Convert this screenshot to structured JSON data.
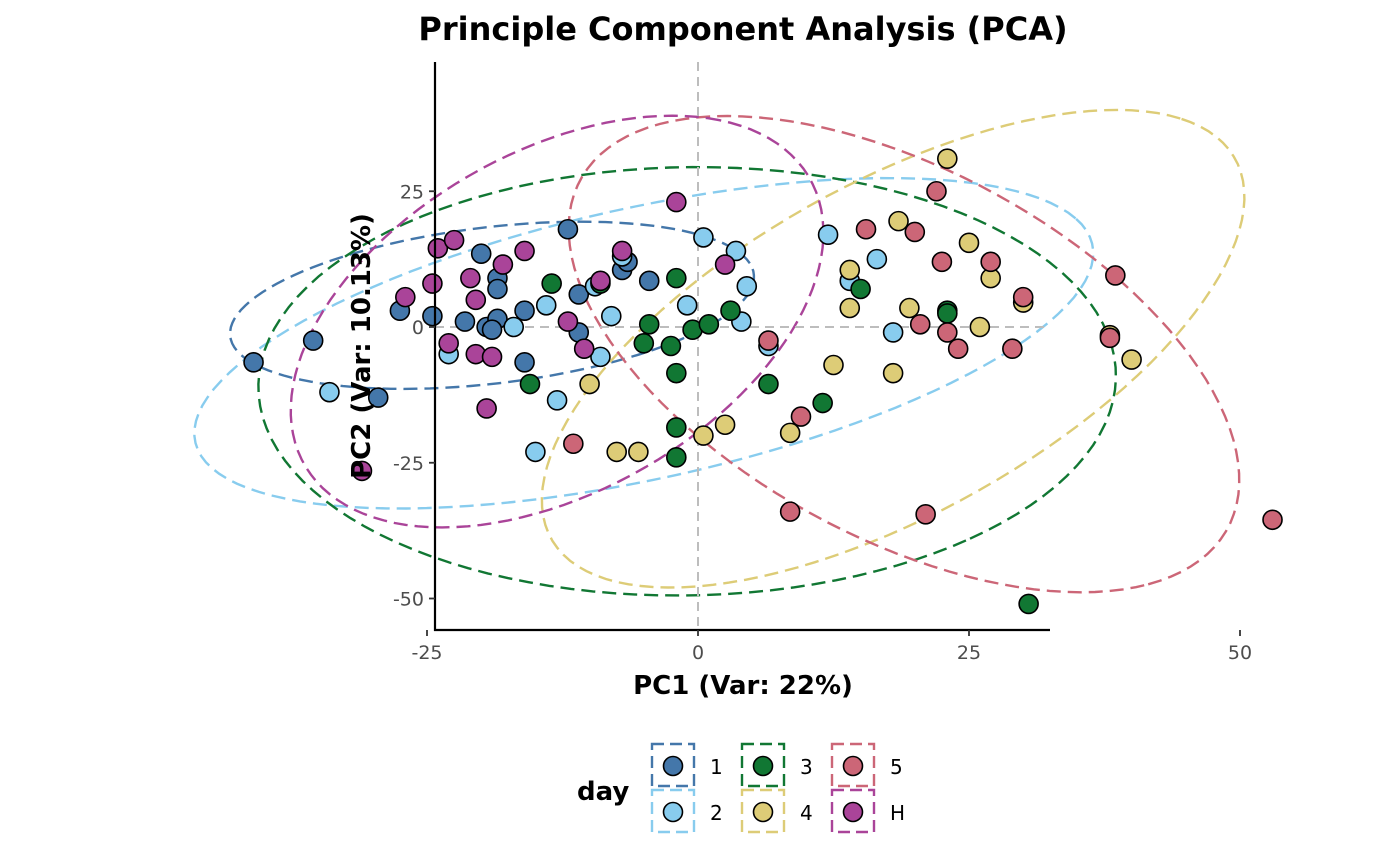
{
  "chart_data": {
    "type": "scatter",
    "title": "Principle Component Analysis (PCA)",
    "xlabel": "PC1 (Var: 22%)",
    "ylabel": "PC2 (Var: 10.13%)",
    "xlim": [
      -48,
      65
    ],
    "ylim": [
      -56,
      49
    ],
    "xticks": [
      -25,
      0,
      25,
      50
    ],
    "xtick_labels": [
      "-25",
      "0",
      "25",
      "50"
    ],
    "yticks": [
      -50,
      -25,
      0,
      25
    ],
    "ytick_labels": [
      "-50",
      "-25",
      "0",
      "25"
    ],
    "grid": false,
    "reference_lines": {
      "x": 0,
      "y": 0
    },
    "legend": {
      "title": "day",
      "position": "bottom"
    },
    "ellipses": "dashed confidence ellipse per group",
    "series": [
      {
        "name": "1",
        "color": "#4477AA",
        "points": [
          [
            -41,
            -6.5
          ],
          [
            -35.5,
            -2.5
          ],
          [
            -29.5,
            -13
          ],
          [
            -27.5,
            3
          ],
          [
            -24.5,
            2
          ],
          [
            -21.5,
            1
          ],
          [
            -19.5,
            0
          ],
          [
            -18.5,
            1.5
          ],
          [
            -19,
            -0.5
          ],
          [
            -20,
            13.5
          ],
          [
            -18.5,
            9
          ],
          [
            -18.5,
            7
          ],
          [
            -16,
            3
          ],
          [
            -16,
            -6.5
          ],
          [
            -12,
            18
          ],
          [
            -11,
            6
          ],
          [
            -11,
            -1
          ],
          [
            -7,
            10.5
          ],
          [
            -6.5,
            12
          ],
          [
            -4.5,
            8.5
          ]
        ]
      },
      {
        "name": "2",
        "color": "#88CCEE",
        "points": [
          [
            -34,
            -12
          ],
          [
            -23,
            -5
          ],
          [
            -17,
            0
          ],
          [
            -15,
            -23
          ],
          [
            -14,
            4
          ],
          [
            -13,
            -13.5
          ],
          [
            -9.5,
            7.5
          ],
          [
            -9,
            -5.5
          ],
          [
            -8,
            2
          ],
          [
            -7,
            13
          ],
          [
            -1,
            4
          ],
          [
            0.5,
            16.5
          ],
          [
            3.5,
            14
          ],
          [
            4,
            1
          ],
          [
            4.5,
            7.5
          ],
          [
            6.5,
            -3.5
          ],
          [
            12,
            17
          ],
          [
            14,
            8.5
          ],
          [
            16.5,
            12.5
          ],
          [
            18,
            -1
          ]
        ]
      },
      {
        "name": "3",
        "color": "#117733",
        "points": [
          [
            -15.5,
            -10.5
          ],
          [
            -13.5,
            8
          ],
          [
            -9,
            8
          ],
          [
            -4.5,
            0.5
          ],
          [
            -5,
            -3
          ],
          [
            -2.5,
            -3.5
          ],
          [
            -2,
            9
          ],
          [
            -2,
            -8.5
          ],
          [
            -2,
            -18.5
          ],
          [
            -2,
            -24
          ],
          [
            -0.5,
            -0.5
          ],
          [
            1,
            0.5
          ],
          [
            3,
            3
          ],
          [
            6.5,
            -10.5
          ],
          [
            11.5,
            -14
          ],
          [
            15,
            7
          ],
          [
            23,
            3
          ],
          [
            23,
            2.5
          ],
          [
            30.5,
            -51
          ]
        ]
      },
      {
        "name": "4",
        "color": "#DDCC77",
        "points": [
          [
            -10,
            -10.5
          ],
          [
            -7.5,
            -23
          ],
          [
            -5.5,
            -23
          ],
          [
            0.5,
            -20
          ],
          [
            2.5,
            -18
          ],
          [
            8.5,
            -19.5
          ],
          [
            12.5,
            -7
          ],
          [
            14,
            10.5
          ],
          [
            14,
            3.5
          ],
          [
            18,
            -8.5
          ],
          [
            18.5,
            19.5
          ],
          [
            19.5,
            3.5
          ],
          [
            23,
            31
          ],
          [
            25,
            15.5
          ],
          [
            26,
            0
          ],
          [
            27,
            9
          ],
          [
            30,
            4.5
          ],
          [
            38,
            -1.5
          ],
          [
            40,
            -6
          ]
        ]
      },
      {
        "name": "5",
        "color": "#CC6677",
        "points": [
          [
            -11.5,
            -21.5
          ],
          [
            6.5,
            -2.5
          ],
          [
            8.5,
            -34
          ],
          [
            9.5,
            -16.5
          ],
          [
            15.5,
            18
          ],
          [
            20,
            17.5
          ],
          [
            20.5,
            0.5
          ],
          [
            21,
            -34.5
          ],
          [
            22,
            25
          ],
          [
            22.5,
            12
          ],
          [
            23,
            -1
          ],
          [
            24,
            -4
          ],
          [
            27,
            12
          ],
          [
            29,
            -4
          ],
          [
            30,
            5.5
          ],
          [
            38,
            -2
          ],
          [
            38.5,
            9.5
          ],
          [
            53,
            -35.5
          ]
        ]
      },
      {
        "name": "H",
        "color": "#AA4499",
        "points": [
          [
            -31,
            -26.5
          ],
          [
            -27,
            5.5
          ],
          [
            -24.5,
            8
          ],
          [
            -24,
            14.5
          ],
          [
            -23,
            -3
          ],
          [
            -22.5,
            16
          ],
          [
            -21,
            9
          ],
          [
            -20.5,
            5
          ],
          [
            -20.5,
            -5
          ],
          [
            -19.5,
            -15
          ],
          [
            -19,
            -5.5
          ],
          [
            -18,
            11.5
          ],
          [
            -16,
            14
          ],
          [
            -12,
            1
          ],
          [
            -10.5,
            -4
          ],
          [
            -9,
            8.5
          ],
          [
            -7,
            14
          ],
          [
            -2,
            23
          ],
          [
            2.5,
            11.5
          ]
        ]
      }
    ]
  }
}
